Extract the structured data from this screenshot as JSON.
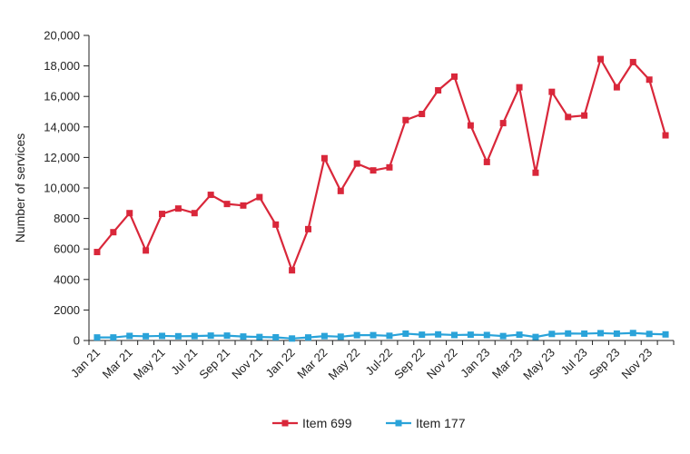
{
  "chart_data": {
    "type": "line",
    "title": "",
    "xlabel": "",
    "ylabel": "Number of services",
    "ylim": [
      0,
      20000
    ],
    "yticks": [
      0,
      2000,
      4000,
      6000,
      8000,
      10000,
      12000,
      14000,
      16000,
      18000,
      20000
    ],
    "ytick_labels": [
      "0",
      "2000",
      "4000",
      "6000",
      "8000",
      "10,000",
      "12,000",
      "14,000",
      "16,000",
      "18,000",
      "20,000"
    ],
    "categories": [
      "Jan 21",
      "Feb 21",
      "Mar 21",
      "Apr 21",
      "May 21",
      "Jun 21",
      "Jul 21",
      "Aug 21",
      "Sep 21",
      "Oct 21",
      "Nov 21",
      "Dec 21",
      "Jan 22",
      "Feb 22",
      "Mar 22",
      "Apr 22",
      "May 22",
      "Jun 22",
      "Jul-22",
      "Aug 22",
      "Sep 22",
      "Oct 22",
      "Nov 22",
      "Dec 22",
      "Jan 23",
      "Feb 23",
      "Mar 23",
      "Apr 23",
      "May 23",
      "Jun 23",
      "Jul 23",
      "Aug 23",
      "Sep 23",
      "Oct 23",
      "Nov 23",
      "Dec 23"
    ],
    "xtick_labels": [
      "Jan 21",
      "Mar 21",
      "May 21",
      "Jul 21",
      "Sep 21",
      "Nov 21",
      "Jan 22",
      "Mar 22",
      "May 22",
      "Jul-22",
      "Sep 22",
      "Nov 22",
      "Jan 23",
      "Mar 23",
      "May 23",
      "Jul 23",
      "Sep 23",
      "Nov 23"
    ],
    "series": [
      {
        "name": "Item 699",
        "color": "#d9273a",
        "values": [
          5800,
          7100,
          8350,
          5900,
          8300,
          8650,
          8350,
          9550,
          8950,
          8850,
          9400,
          7600,
          4600,
          7300,
          11950,
          9800,
          11600,
          11150,
          11350,
          14450,
          14850,
          16400,
          17300,
          14100,
          11700,
          14250,
          16600,
          11000,
          16300,
          14650,
          14750,
          18450,
          16600,
          18250,
          17100,
          13450
        ]
      },
      {
        "name": "Item 177",
        "color": "#2aa3d9",
        "values": [
          200,
          200,
          300,
          280,
          300,
          280,
          290,
          320,
          320,
          260,
          230,
          210,
          130,
          200,
          290,
          250,
          350,
          350,
          310,
          450,
          380,
          400,
          360,
          380,
          360,
          290,
          380,
          230,
          430,
          460,
          450,
          480,
          450,
          490,
          430,
          400
        ]
      }
    ],
    "legend_position": "bottom-center"
  }
}
